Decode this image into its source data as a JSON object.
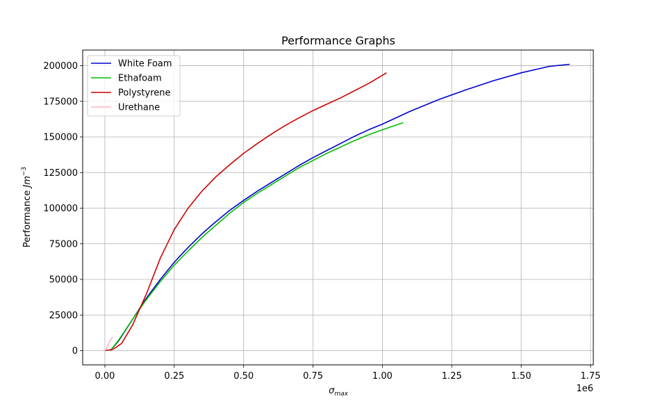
{
  "chart_data": {
    "type": "line",
    "title": "Performance Graphs",
    "xlabel_symbol": "σ",
    "xlabel_sub": "max",
    "ylabel_text": "Performance ",
    "ylabel_unit": "Jm",
    "ylabel_exp": "−3",
    "x_offset_label": "1e6",
    "xlim": [
      -80000,
      1760000
    ],
    "ylim": [
      -10000,
      211000
    ],
    "x_ticks": [
      0,
      250000,
      500000,
      750000,
      1000000,
      1250000,
      1500000,
      1750000
    ],
    "x_tick_labels": [
      "0.00",
      "0.25",
      "0.50",
      "0.75",
      "1.00",
      "1.25",
      "1.50",
      "1.75"
    ],
    "y_ticks": [
      0,
      25000,
      50000,
      75000,
      100000,
      125000,
      150000,
      175000,
      200000
    ],
    "y_tick_labels": [
      "0",
      "25000",
      "50000",
      "75000",
      "100000",
      "125000",
      "150000",
      "175000",
      "200000"
    ],
    "grid": true,
    "legend_position": "upper-left",
    "series": [
      {
        "name": "White Foam",
        "color": "#0000cc",
        "x": [
          20000,
          50000,
          100000,
          150000,
          200000,
          250000,
          300000,
          350000,
          400000,
          450000,
          500000,
          550000,
          600000,
          650000,
          700000,
          750000,
          800000,
          850000,
          900000,
          950000,
          1000000,
          1100000,
          1200000,
          1300000,
          1400000,
          1500000,
          1600000,
          1675000
        ],
        "y": [
          0,
          7000,
          22000,
          37000,
          50000,
          62000,
          72500,
          82000,
          90500,
          98500,
          105500,
          112000,
          118000,
          124000,
          130000,
          135500,
          140500,
          145500,
          150500,
          155000,
          159000,
          168000,
          176000,
          183000,
          189500,
          195000,
          199500,
          201000
        ]
      },
      {
        "name": "Ethafoam",
        "color": "#00bb00",
        "x": [
          20000,
          50000,
          100000,
          150000,
          200000,
          250000,
          300000,
          350000,
          400000,
          450000,
          500000,
          550000,
          600000,
          650000,
          700000,
          750000,
          800000,
          850000,
          900000,
          950000,
          1000000,
          1075000
        ],
        "y": [
          0,
          7500,
          22000,
          36000,
          48500,
          60000,
          70000,
          79500,
          88000,
          96500,
          104000,
          110500,
          116500,
          122500,
          128500,
          133500,
          138500,
          143000,
          147500,
          151500,
          155000,
          160000
        ]
      },
      {
        "name": "Polystyrene",
        "color": "#cc0000",
        "x": [
          0,
          30000,
          60000,
          100000,
          150000,
          200000,
          250000,
          300000,
          350000,
          400000,
          450000,
          500000,
          550000,
          600000,
          650000,
          700000,
          750000,
          800000,
          850000,
          900000,
          950000,
          1015000
        ],
        "y": [
          0,
          1000,
          5000,
          18000,
          40000,
          65000,
          85000,
          100000,
          112000,
          122000,
          130500,
          138500,
          145500,
          152000,
          158000,
          163500,
          168500,
          173000,
          177500,
          182500,
          187500,
          195000
        ]
      },
      {
        "name": "Urethane",
        "color": "#ffb6c1",
        "x": [
          0,
          8000,
          15000,
          22000,
          28000
        ],
        "y": [
          0,
          2500,
          5500,
          8000,
          9500
        ]
      }
    ]
  }
}
